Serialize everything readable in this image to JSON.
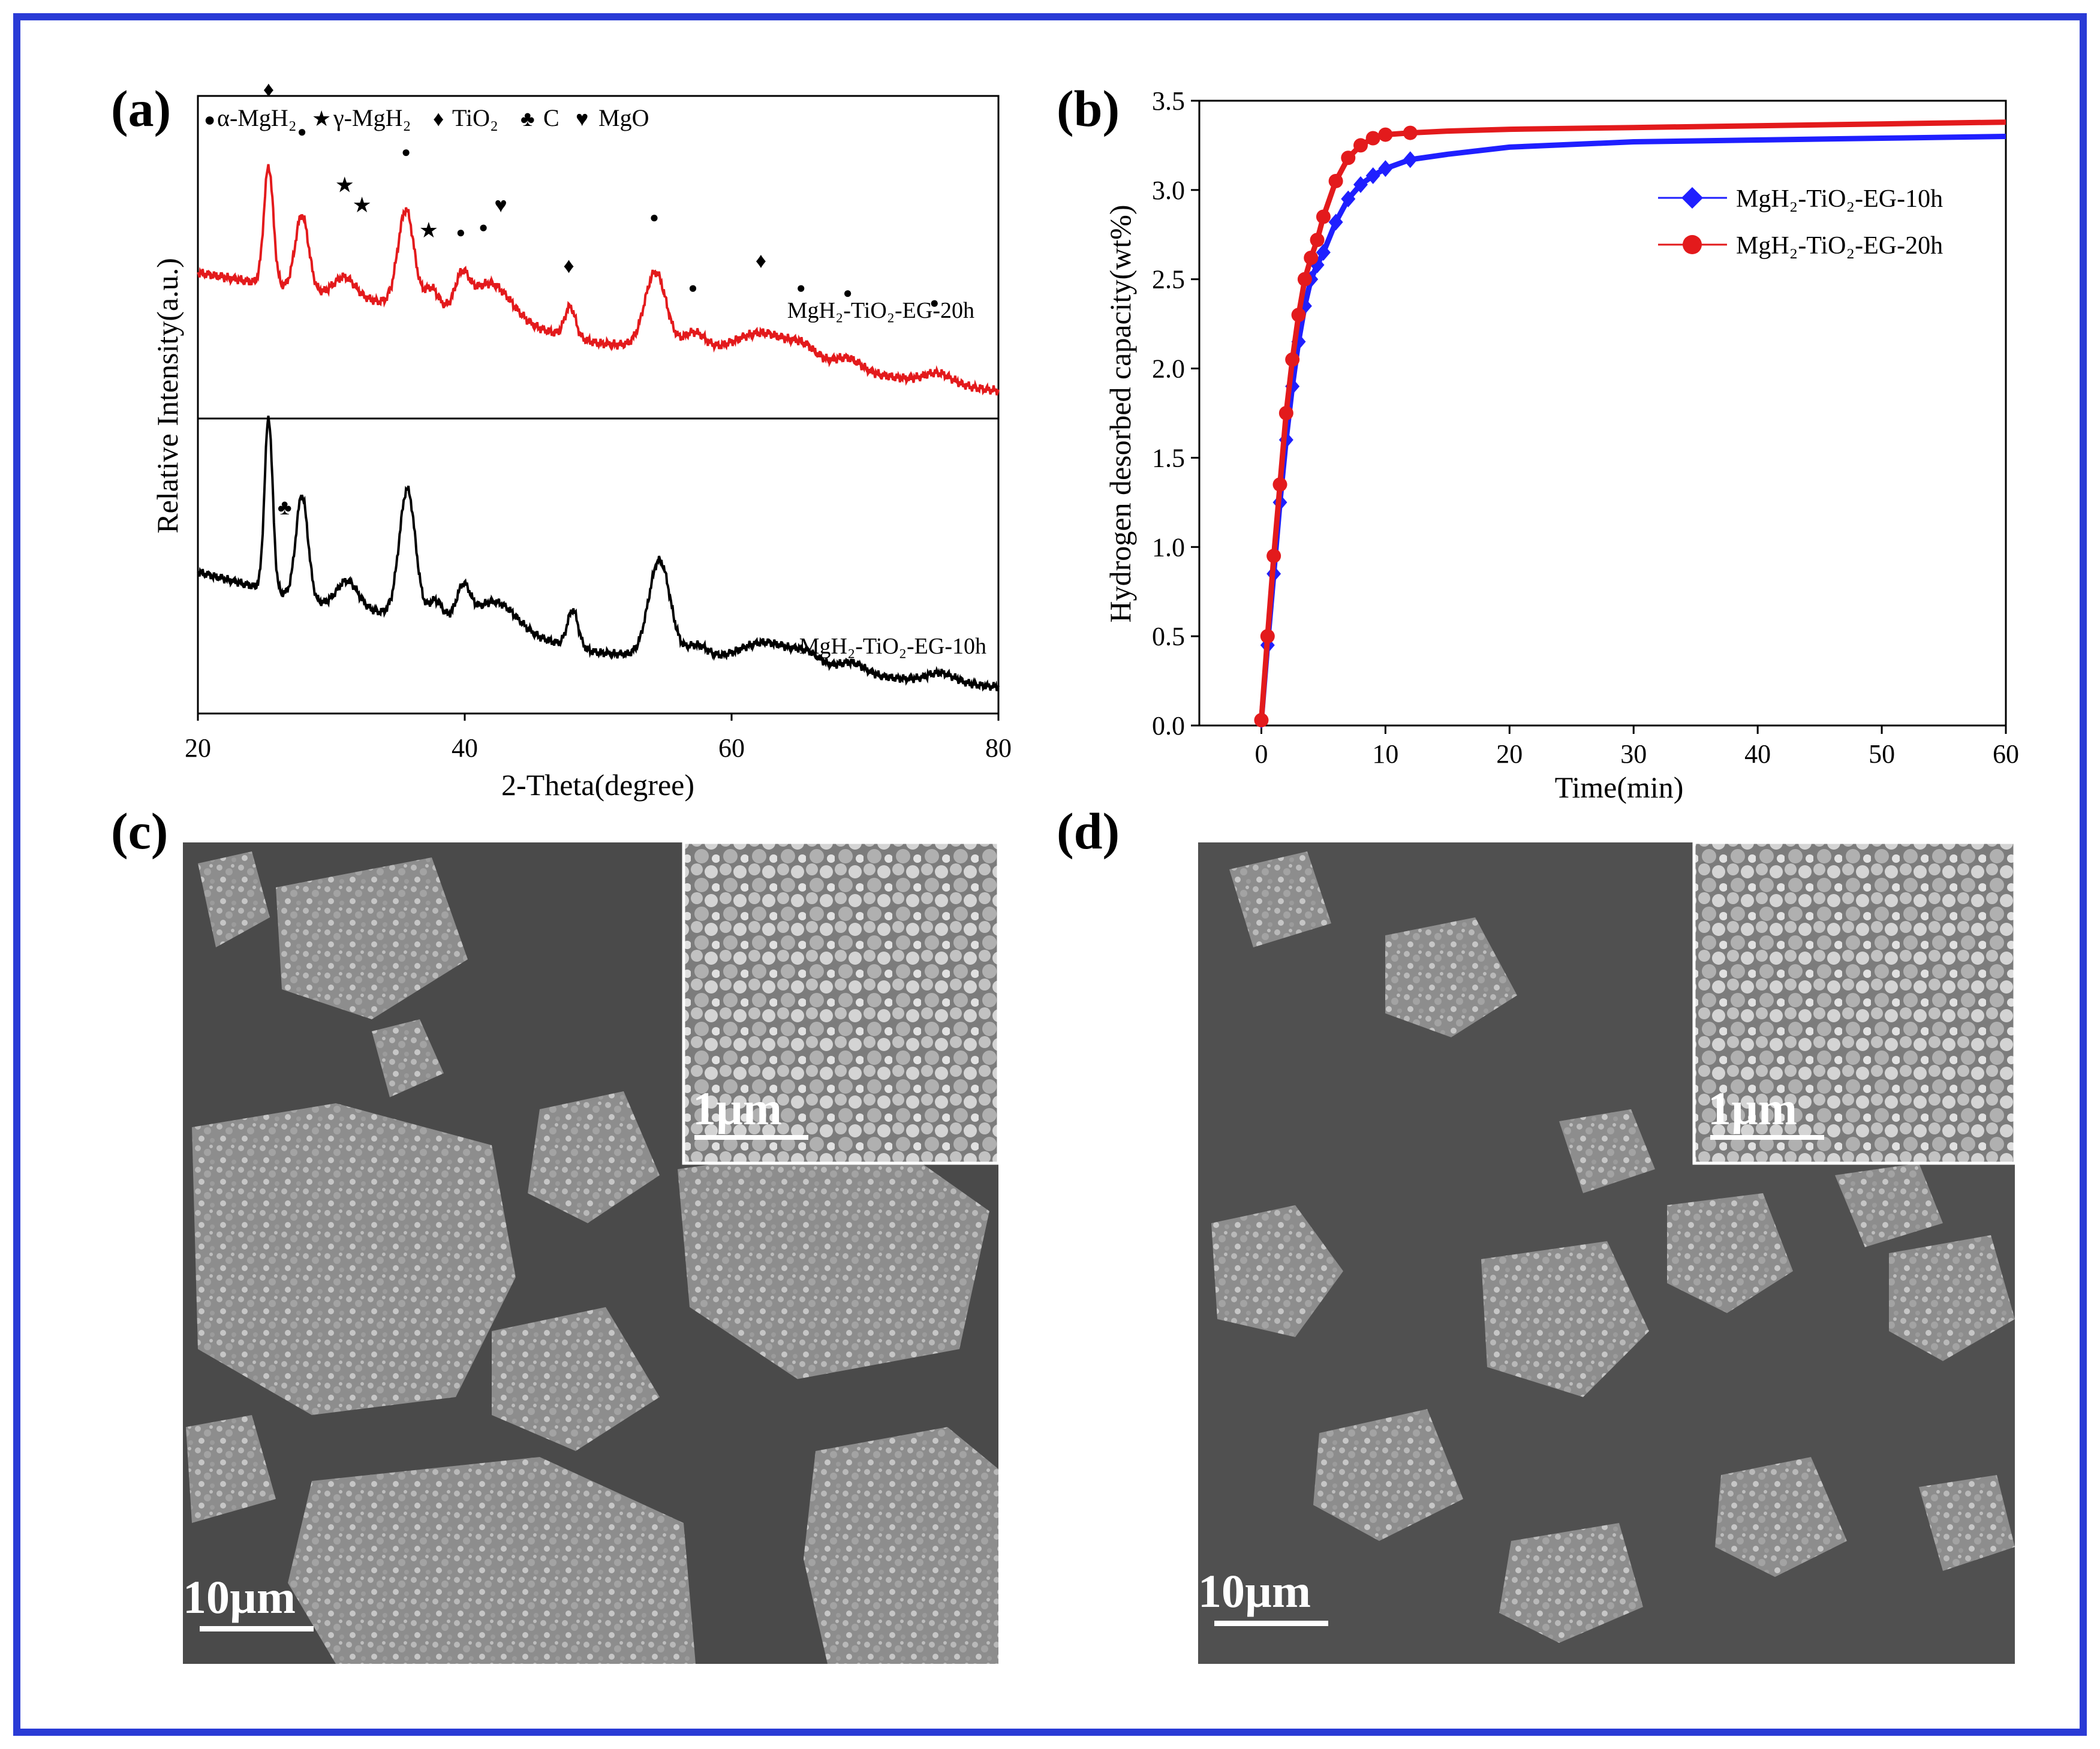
{
  "panels": {
    "a": {
      "label": "(a)"
    },
    "b": {
      "label": "(b)"
    },
    "c": {
      "label": "(c)",
      "scale_main": "10µm",
      "scale_inset": "1µm"
    },
    "d": {
      "label": "(d)",
      "scale_main": "10µm",
      "scale_inset": "1µm"
    }
  },
  "colors": {
    "frame": "#2a3bd6",
    "red": "#e31a1c",
    "blue": "#1f1fff",
    "black": "#000000"
  },
  "chart_data": [
    {
      "id": "a",
      "type": "line",
      "xlabel": "2-Theta(degree)",
      "ylabel": "Relative Intensity(a.u.)",
      "xlim": [
        20,
        80
      ],
      "xticks": [
        "20",
        "40",
        "60",
        "80"
      ],
      "legend_phases": [
        {
          "symbol": "●",
          "text": "α-MgH₂"
        },
        {
          "symbol": "★",
          "text": "γ-MgH₂"
        },
        {
          "symbol": "♦",
          "text": "TiO₂"
        },
        {
          "symbol": "♣",
          "text": "C"
        },
        {
          "symbol": "♥",
          "text": "MgO"
        }
      ],
      "series": [
        {
          "name": "MgH₂-TiO₂-EG-20h",
          "color": "#e31a1c",
          "baseline": [
            [
              20,
              0.52
            ],
            [
              30,
              0.43
            ],
            [
              40,
              0.36
            ],
            [
              50,
              0.24
            ],
            [
              60,
              0.2
            ],
            [
              70,
              0.12
            ],
            [
              80,
              0.05
            ]
          ],
          "peaks": [
            [
              25.3,
              0.47,
              0.35
            ],
            [
              27.8,
              0.3,
              0.5
            ],
            [
              31,
              0.08,
              0.8
            ],
            [
              35.6,
              0.38,
              0.6
            ],
            [
              37.5,
              0.08,
              0.5
            ],
            [
              39.8,
              0.12,
              0.5
            ],
            [
              42,
              0.14,
              1.5
            ],
            [
              47.9,
              0.12,
              0.4
            ],
            [
              54.3,
              0.3,
              0.8
            ],
            [
              57.2,
              0.07,
              0.8
            ],
            [
              62.5,
              0.1,
              2.0
            ],
            [
              65.5,
              0.05,
              1.0
            ],
            [
              68.7,
              0.05,
              1.0
            ],
            [
              75.5,
              0.04,
              1.0
            ]
          ]
        },
        {
          "name": "MgH₂-TiO₂-EG-10h",
          "color": "#000000",
          "baseline": [
            [
              20,
              0.55
            ],
            [
              30,
              0.4
            ],
            [
              40,
              0.33
            ],
            [
              50,
              0.2
            ],
            [
              60,
              0.16
            ],
            [
              70,
              0.1
            ],
            [
              80,
              0.05
            ]
          ],
          "peaks": [
            [
              25.3,
              0.75,
              0.3
            ],
            [
              27.8,
              0.45,
              0.45
            ],
            [
              31.2,
              0.12,
              0.8
            ],
            [
              35.7,
              0.55,
              0.6
            ],
            [
              37.8,
              0.08,
              0.5
            ],
            [
              39.9,
              0.14,
              0.5
            ],
            [
              42.4,
              0.12,
              1.5
            ],
            [
              48.1,
              0.16,
              0.4
            ],
            [
              54.6,
              0.42,
              0.8
            ],
            [
              57.4,
              0.06,
              0.8
            ],
            [
              62.7,
              0.1,
              2.0
            ],
            [
              65.8,
              0.05,
              1.0
            ],
            [
              69,
              0.05,
              1.0
            ],
            [
              75.7,
              0.04,
              1.0
            ]
          ]
        }
      ],
      "markers_20h": [
        {
          "s": "♦",
          "x": 25.3,
          "y": 1.22
        },
        {
          "s": "●",
          "x": 27.8,
          "y": 1.06
        },
        {
          "s": "★",
          "x": 31,
          "y": 0.84
        },
        {
          "s": "★",
          "x": 32.3,
          "y": 0.76
        },
        {
          "s": "●",
          "x": 35.6,
          "y": 0.98
        },
        {
          "s": "★",
          "x": 37.3,
          "y": 0.66
        },
        {
          "s": "●",
          "x": 39.7,
          "y": 0.66
        },
        {
          "s": "●",
          "x": 41.4,
          "y": 0.68
        },
        {
          "s": "♥",
          "x": 42.7,
          "y": 0.76
        },
        {
          "s": "♦",
          "x": 47.8,
          "y": 0.52
        },
        {
          "s": "●",
          "x": 54.2,
          "y": 0.72
        },
        {
          "s": "●",
          "x": 57.1,
          "y": 0.44
        },
        {
          "s": "♦",
          "x": 62.2,
          "y": 0.54
        },
        {
          "s": "●",
          "x": 65.2,
          "y": 0.44
        },
        {
          "s": "●",
          "x": 68.7,
          "y": 0.42
        },
        {
          "s": "●",
          "x": 75.2,
          "y": 0.38
        }
      ],
      "markers_10h": [
        {
          "s": "♣",
          "x": 26.5,
          "y": 0.8
        }
      ]
    },
    {
      "id": "b",
      "type": "scatter",
      "xlabel": "Time(min)",
      "ylabel": "Hydrogen desorbed capacity(wt%)",
      "xlim": [
        -5,
        60
      ],
      "ylim": [
        0,
        3.5
      ],
      "xticks": [
        "0",
        "10",
        "20",
        "30",
        "40",
        "50",
        "60"
      ],
      "yticks": [
        "0.0",
        "0.5",
        "1.0",
        "1.5",
        "2.0",
        "2.5",
        "3.0",
        "3.5"
      ],
      "legend_position": "upper-right",
      "series": [
        {
          "name": "MgH₂-TiO₂-EG-10h",
          "marker": "diamond",
          "color": "#1f1fff",
          "x": [
            0,
            0.5,
            1,
            1.5,
            2,
            2.5,
            3,
            3.5,
            4,
            4.5,
            5,
            6,
            7,
            8,
            9,
            10,
            12,
            15,
            20,
            30,
            40,
            50,
            60
          ],
          "y": [
            0.03,
            0.45,
            0.85,
            1.25,
            1.6,
            1.9,
            2.15,
            2.35,
            2.5,
            2.58,
            2.65,
            2.82,
            2.95,
            3.03,
            3.08,
            3.12,
            3.17,
            3.2,
            3.24,
            3.27,
            3.28,
            3.29,
            3.3
          ]
        },
        {
          "name": "MgH₂-TiO₂-EG-20h",
          "marker": "circle",
          "color": "#e31a1c",
          "x": [
            0,
            0.5,
            1,
            1.5,
            2,
            2.5,
            3,
            3.5,
            4,
            4.5,
            5,
            6,
            7,
            8,
            9,
            10,
            12,
            15,
            20,
            30,
            40,
            50,
            60
          ],
          "y": [
            0.03,
            0.5,
            0.95,
            1.35,
            1.75,
            2.05,
            2.3,
            2.5,
            2.62,
            2.72,
            2.85,
            3.05,
            3.18,
            3.25,
            3.29,
            3.31,
            3.32,
            3.33,
            3.34,
            3.35,
            3.36,
            3.37,
            3.38
          ]
        }
      ]
    }
  ]
}
